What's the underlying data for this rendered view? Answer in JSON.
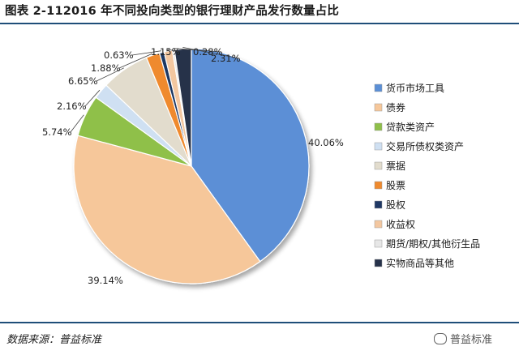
{
  "title": "图表 2-112016 年不同投向类型的银行理财产品发行数量占比",
  "source": "数据来源：普益标准",
  "watermark": "普益标准",
  "chart_data": {
    "type": "pie",
    "title": "图表 2-112016 年不同投向类型的银行理财产品发行数量占比",
    "legend_position": "right",
    "slices": [
      {
        "label": "货币市场工具",
        "value": 40.06,
        "text": "40.06%",
        "color": "#5b8fd6"
      },
      {
        "label": "债券",
        "value": 39.14,
        "text": "39.14%",
        "color": "#f6c79a"
      },
      {
        "label": "贷款类资产",
        "value": 5.74,
        "text": "5.74%",
        "color": "#8fc04a"
      },
      {
        "label": "交易所债权类资产",
        "value": 2.16,
        "text": "2.16%",
        "color": "#cfe0f2"
      },
      {
        "label": "票据",
        "value": 6.65,
        "text": "6.65%",
        "color": "#e2dccd"
      },
      {
        "label": "股票",
        "value": 1.88,
        "text": "1.88%",
        "color": "#ef8a2e"
      },
      {
        "label": "股权",
        "value": 0.63,
        "text": "0.63%",
        "color": "#1f3864"
      },
      {
        "label": "收益权",
        "value": 1.15,
        "text": "1.15%",
        "color": "#f3c7a0"
      },
      {
        "label": "期货/期权/其他衍生品",
        "value": 0.28,
        "text": "0.28%",
        "color": "#e7e7e7"
      },
      {
        "label": "实物商品等其他",
        "value": 2.31,
        "text": "2.31%",
        "color": "#26324a"
      }
    ]
  }
}
